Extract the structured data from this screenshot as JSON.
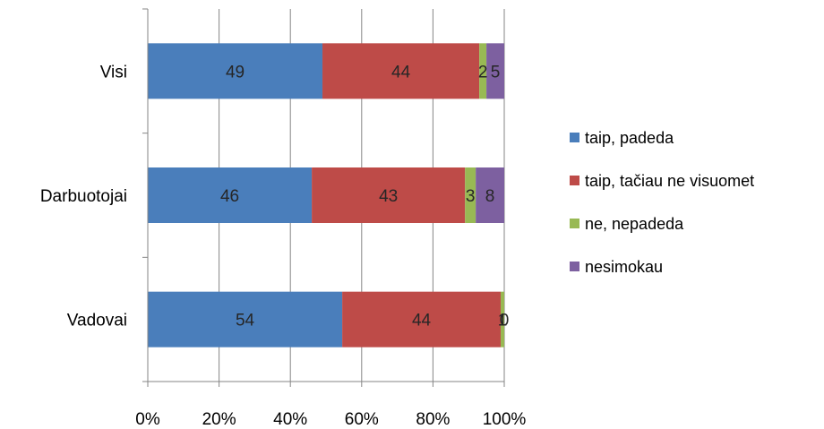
{
  "chart_data": {
    "type": "bar",
    "orientation": "horizontal",
    "stacked": "percent",
    "categories": [
      "Visi",
      "Darbuotojai",
      "Vadovai"
    ],
    "series": [
      {
        "name": "taip, padeda",
        "color": "#4a7ebb",
        "values": [
          49,
          46,
          54
        ]
      },
      {
        "name": "taip, tačiau ne visuomet",
        "color": "#be4b48",
        "values": [
          44,
          43,
          44
        ]
      },
      {
        "name": "ne, nepadeda",
        "color": "#98b954",
        "values": [
          2,
          3,
          1
        ]
      },
      {
        "name": "nesimokau",
        "color": "#7d60a0",
        "values": [
          5,
          8,
          0
        ]
      }
    ],
    "data_labels": [
      [
        "49",
        "44",
        "2",
        "5"
      ],
      [
        "46",
        "43",
        "3",
        "8"
      ],
      [
        "54",
        "44",
        "1",
        "0"
      ]
    ],
    "x_ticks": [
      "0%",
      "20%",
      "40%",
      "60%",
      "80%",
      "100%"
    ],
    "xlim": [
      0,
      100
    ],
    "grid": true,
    "legend_position": "right"
  }
}
